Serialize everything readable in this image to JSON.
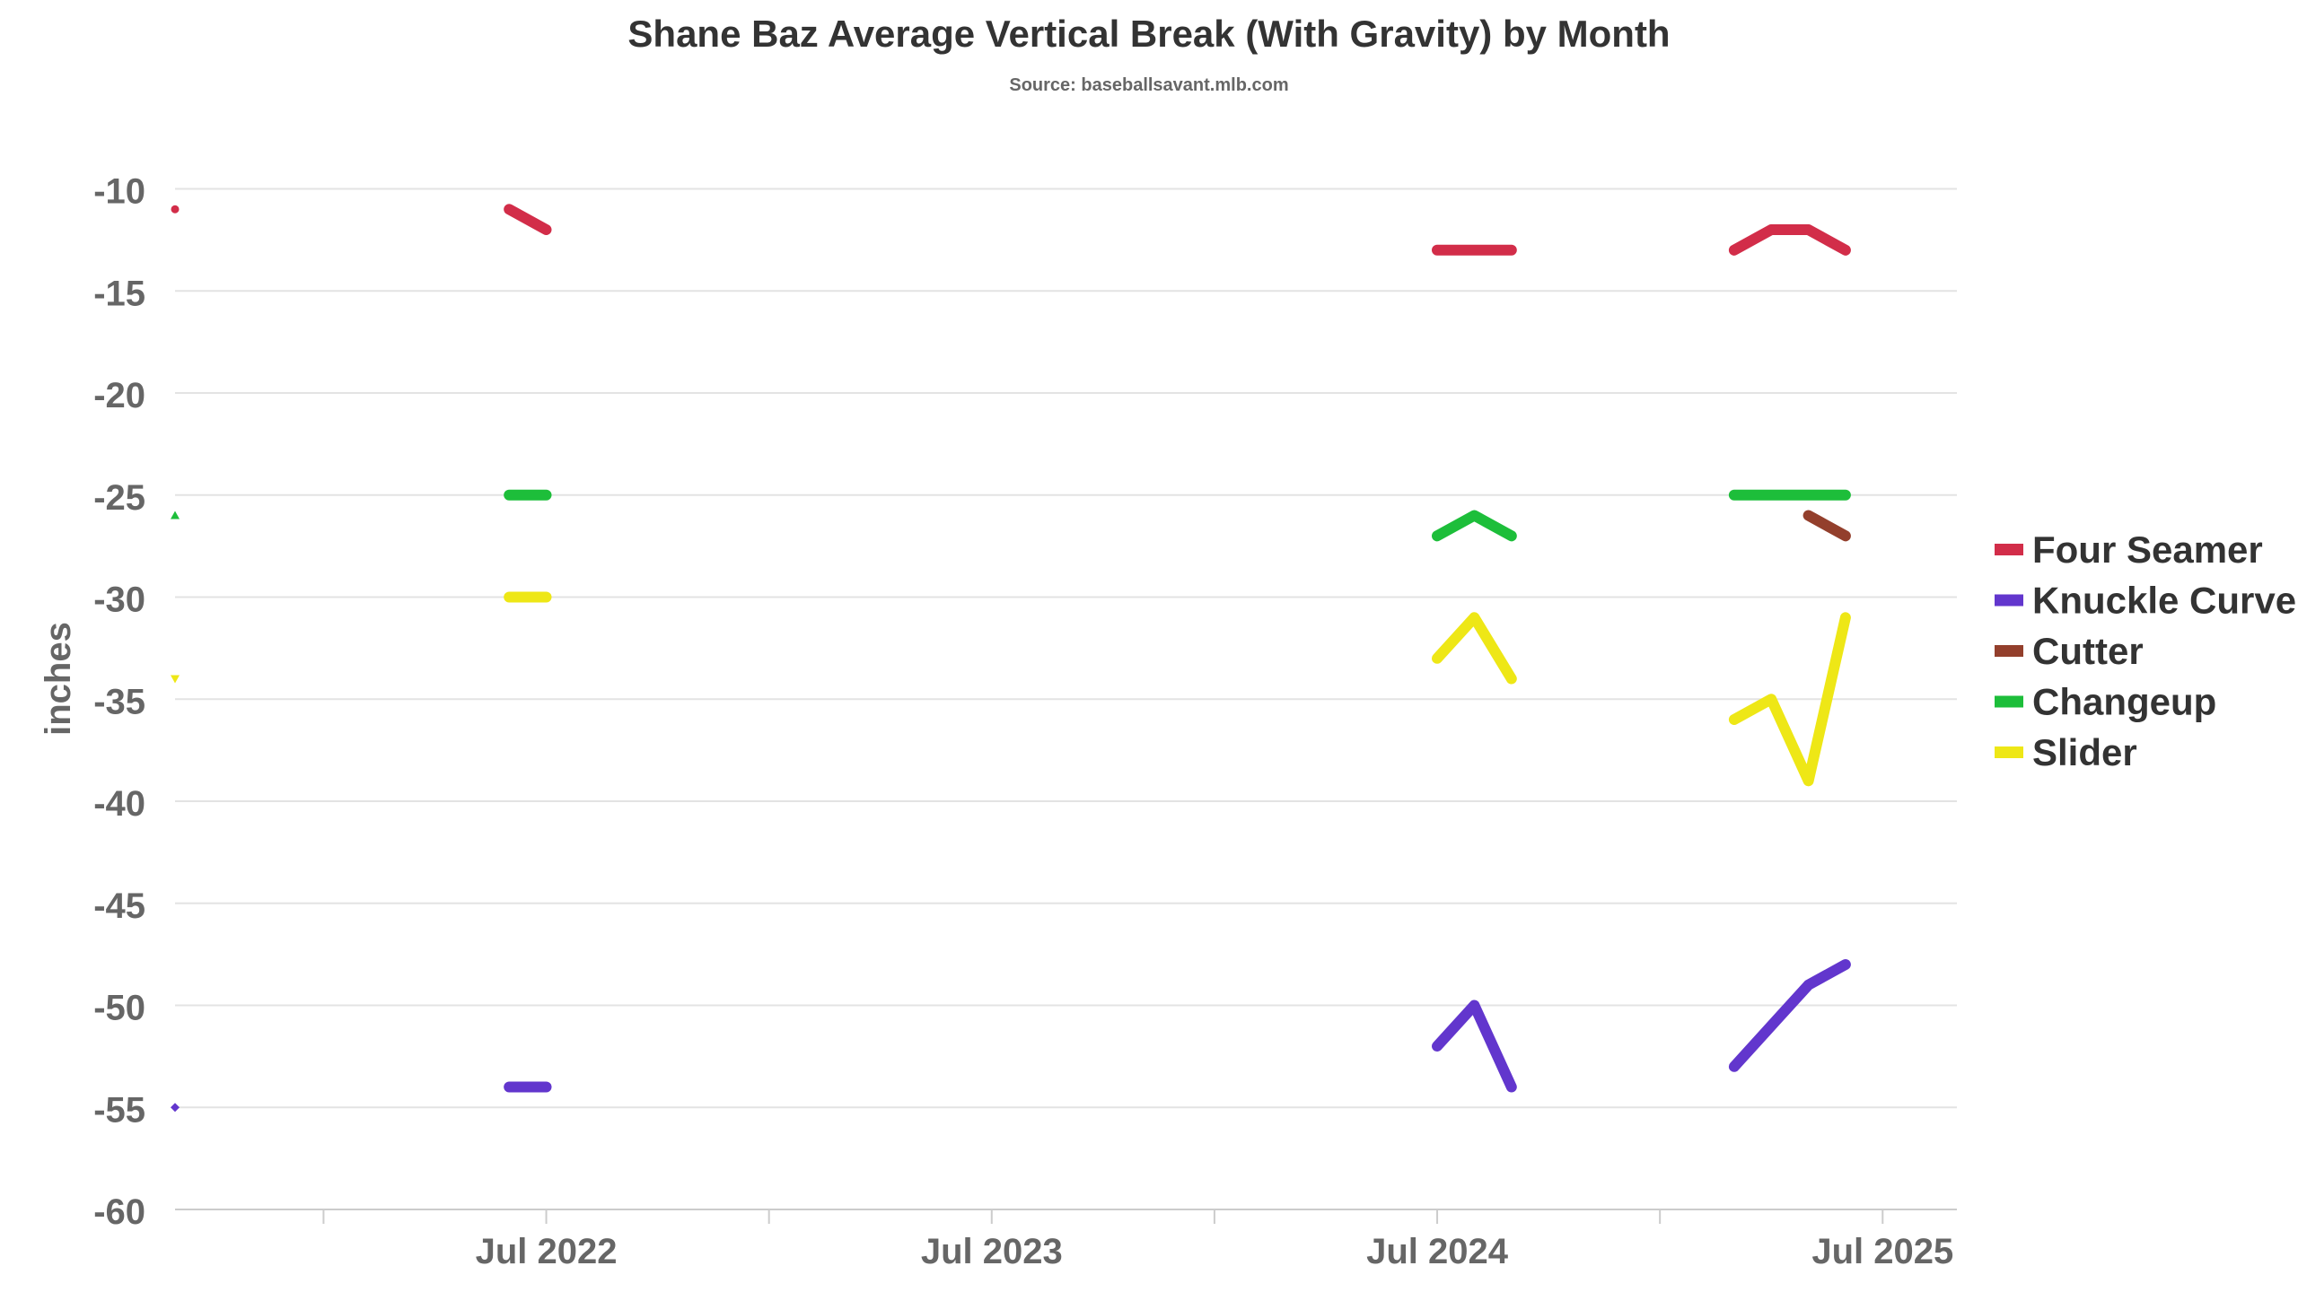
{
  "chart_data": {
    "type": "line",
    "title": "Shane Baz Average Vertical Break (With Gravity) by Month",
    "subtitle": "Source: baseballsavant.mlb.com",
    "xlabel": "",
    "ylabel": "inches",
    "ylim": [
      -60,
      -8
    ],
    "yticks": [
      -10,
      -15,
      -20,
      -25,
      -30,
      -35,
      -40,
      -45,
      -50,
      -55,
      -60
    ],
    "xlim": [
      "2021-09",
      "2025-09"
    ],
    "xticks": [
      {
        "date": "2022-07",
        "label": "Jul 2022"
      },
      {
        "date": "2023-07",
        "label": "Jul 2023"
      },
      {
        "date": "2024-07",
        "label": "Jul 2024"
      },
      {
        "date": "2025-07",
        "label": "Jul 2025"
      }
    ],
    "grid": true,
    "legend_position": "right",
    "series": [
      {
        "name": "Four Seamer",
        "color": "#d22d49",
        "marker": "circle",
        "segments": [
          [
            [
              "2021-09",
              -11
            ]
          ],
          [
            [
              "2022-06",
              -11
            ],
            [
              "2022-07",
              -12
            ]
          ],
          [
            [
              "2024-07",
              -13
            ],
            [
              "2024-08",
              -13
            ],
            [
              "2024-09",
              -13
            ]
          ],
          [
            [
              "2025-03",
              -13
            ],
            [
              "2025-04",
              -12
            ],
            [
              "2025-05",
              -12
            ],
            [
              "2025-06",
              -13
            ]
          ]
        ]
      },
      {
        "name": "Knuckle Curve",
        "color": "#6236cd",
        "marker": "diamond",
        "segments": [
          [
            [
              "2021-09",
              -55
            ]
          ],
          [
            [
              "2022-06",
              -54
            ],
            [
              "2022-07",
              -54
            ]
          ],
          [
            [
              "2024-07",
              -52
            ],
            [
              "2024-08",
              -50
            ],
            [
              "2024-09",
              -54
            ]
          ],
          [
            [
              "2025-03",
              -53
            ],
            [
              "2025-04",
              -51
            ],
            [
              "2025-05",
              -49
            ],
            [
              "2025-06",
              -48
            ]
          ]
        ]
      },
      {
        "name": "Cutter",
        "color": "#933f2c",
        "marker": "square",
        "segments": [
          [
            [
              "2025-05",
              -26
            ],
            [
              "2025-06",
              -27
            ]
          ]
        ]
      },
      {
        "name": "Changeup",
        "color": "#1dbe3a",
        "marker": "triangle",
        "segments": [
          [
            [
              "2021-09",
              -26
            ]
          ],
          [
            [
              "2022-06",
              -25
            ],
            [
              "2022-07",
              -25
            ]
          ],
          [
            [
              "2024-07",
              -27
            ],
            [
              "2024-08",
              -26
            ],
            [
              "2024-09",
              -27
            ]
          ],
          [
            [
              "2025-03",
              -25
            ],
            [
              "2025-04",
              -25
            ],
            [
              "2025-05",
              -25
            ],
            [
              "2025-06",
              -25
            ]
          ]
        ]
      },
      {
        "name": "Slider",
        "color": "#eee716",
        "marker": "triangle-down",
        "segments": [
          [
            [
              "2021-09",
              -34
            ]
          ],
          [
            [
              "2022-06",
              -30
            ],
            [
              "2022-07",
              -30
            ]
          ],
          [
            [
              "2024-07",
              -33
            ],
            [
              "2024-08",
              -31
            ],
            [
              "2024-09",
              -34
            ]
          ],
          [
            [
              "2025-03",
              -36
            ],
            [
              "2025-04",
              -35
            ],
            [
              "2025-05",
              -39
            ],
            [
              "2025-06",
              -31
            ]
          ]
        ]
      }
    ]
  }
}
